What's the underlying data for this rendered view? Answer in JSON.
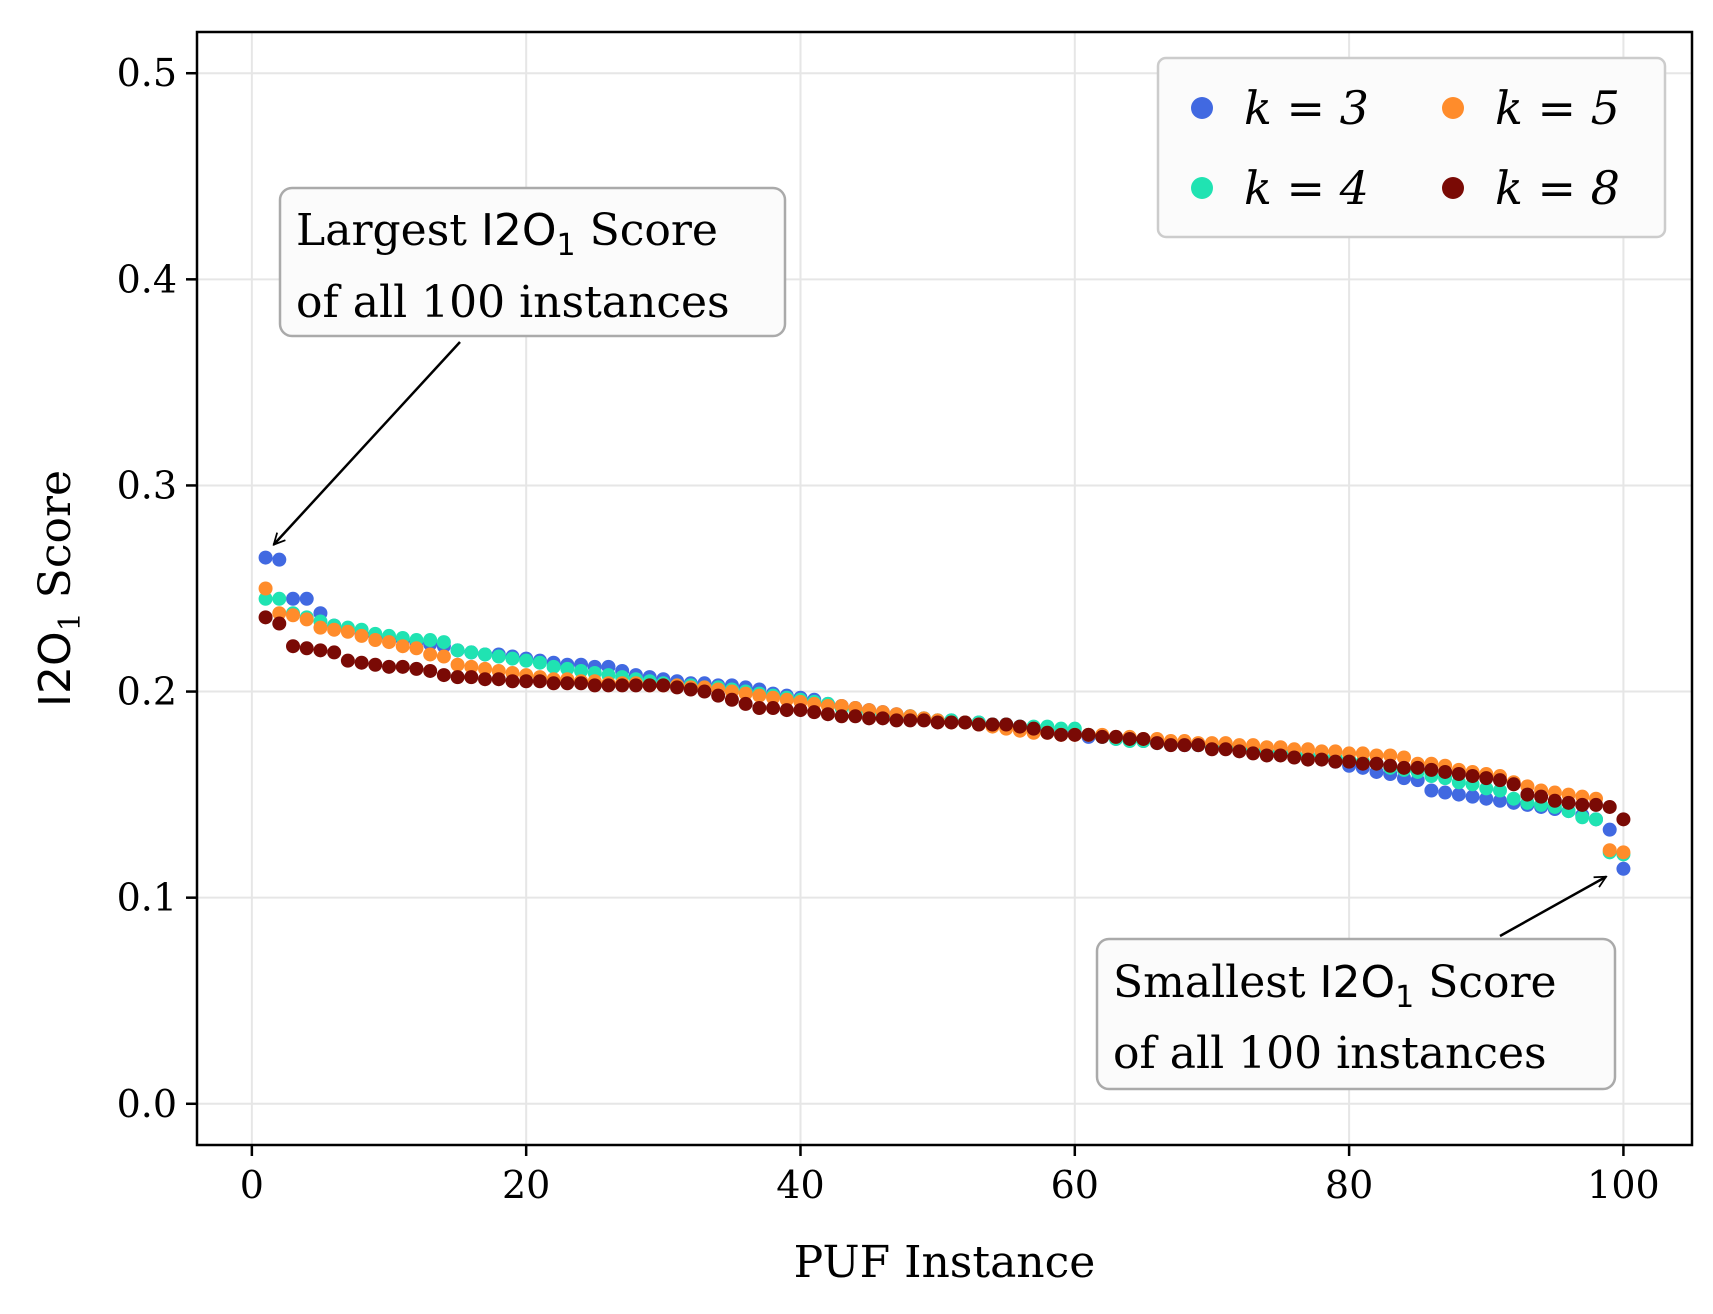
{
  "chart_data": {
    "type": "scatter",
    "xlabel": "PUF Instance",
    "ylabel": "I2O",
    "ylabel_sub": "1",
    "ylabel_suffix": " Score",
    "xlim": [
      -4,
      105
    ],
    "ylim": [
      -0.02,
      0.52
    ],
    "xticks": [
      0,
      20,
      40,
      60,
      80,
      100
    ],
    "yticks": [
      0.0,
      0.1,
      0.2,
      0.3,
      0.4,
      0.5
    ],
    "grid": true,
    "legend": {
      "placement": "top-right",
      "columns": 2
    },
    "series": [
      {
        "name": "k = 3",
        "color": "#4169e1",
        "x_start": 1,
        "values": [
          0.265,
          0.264,
          0.245,
          0.245,
          0.238,
          0.232,
          0.23,
          0.228,
          0.227,
          0.226,
          0.225,
          0.224,
          0.223,
          0.222,
          0.22,
          0.219,
          0.218,
          0.218,
          0.217,
          0.216,
          0.215,
          0.214,
          0.213,
          0.213,
          0.212,
          0.212,
          0.21,
          0.208,
          0.207,
          0.206,
          0.205,
          0.204,
          0.204,
          0.203,
          0.203,
          0.202,
          0.201,
          0.199,
          0.198,
          0.197,
          0.196,
          0.194,
          0.193,
          0.192,
          0.191,
          0.19,
          0.189,
          0.188,
          0.187,
          0.186,
          0.186,
          0.185,
          0.185,
          0.184,
          0.184,
          0.183,
          0.182,
          0.181,
          0.18,
          0.18,
          0.178,
          0.178,
          0.177,
          0.177,
          0.176,
          0.175,
          0.175,
          0.174,
          0.174,
          0.173,
          0.173,
          0.172,
          0.172,
          0.171,
          0.171,
          0.17,
          0.169,
          0.168,
          0.166,
          0.164,
          0.163,
          0.161,
          0.16,
          0.158,
          0.157,
          0.152,
          0.151,
          0.15,
          0.149,
          0.148,
          0.147,
          0.146,
          0.145,
          0.144,
          0.143,
          0.142,
          0.14,
          0.138,
          0.133,
          0.114
        ]
      },
      {
        "name": "k = 4",
        "color": "#20e3b2",
        "x_start": 1,
        "values": [
          0.245,
          0.245,
          0.238,
          0.236,
          0.234,
          0.232,
          0.231,
          0.23,
          0.228,
          0.227,
          0.226,
          0.225,
          0.225,
          0.224,
          0.22,
          0.219,
          0.218,
          0.217,
          0.216,
          0.215,
          0.214,
          0.212,
          0.211,
          0.21,
          0.209,
          0.208,
          0.207,
          0.206,
          0.205,
          0.204,
          0.203,
          0.203,
          0.202,
          0.202,
          0.201,
          0.2,
          0.199,
          0.198,
          0.197,
          0.196,
          0.195,
          0.194,
          0.192,
          0.191,
          0.19,
          0.189,
          0.188,
          0.188,
          0.187,
          0.186,
          0.186,
          0.185,
          0.185,
          0.184,
          0.184,
          0.183,
          0.183,
          0.183,
          0.182,
          0.182,
          0.179,
          0.178,
          0.177,
          0.176,
          0.176,
          0.175,
          0.175,
          0.175,
          0.174,
          0.174,
          0.173,
          0.173,
          0.172,
          0.171,
          0.171,
          0.17,
          0.169,
          0.169,
          0.168,
          0.167,
          0.166,
          0.165,
          0.163,
          0.162,
          0.161,
          0.159,
          0.158,
          0.156,
          0.155,
          0.153,
          0.152,
          0.148,
          0.146,
          0.145,
          0.144,
          0.142,
          0.139,
          0.138,
          0.122,
          0.121
        ]
      },
      {
        "name": "k = 5",
        "color": "#ff8c2b",
        "x_start": 1,
        "values": [
          0.25,
          0.238,
          0.237,
          0.235,
          0.231,
          0.23,
          0.229,
          0.227,
          0.225,
          0.224,
          0.222,
          0.221,
          0.218,
          0.217,
          0.213,
          0.212,
          0.211,
          0.21,
          0.209,
          0.208,
          0.207,
          0.206,
          0.206,
          0.205,
          0.205,
          0.204,
          0.204,
          0.204,
          0.203,
          0.203,
          0.203,
          0.202,
          0.202,
          0.201,
          0.2,
          0.199,
          0.198,
          0.197,
          0.196,
          0.195,
          0.194,
          0.193,
          0.193,
          0.192,
          0.191,
          0.19,
          0.189,
          0.188,
          0.187,
          0.186,
          0.185,
          0.185,
          0.184,
          0.183,
          0.182,
          0.181,
          0.18,
          0.18,
          0.179,
          0.179,
          0.179,
          0.179,
          0.178,
          0.178,
          0.177,
          0.177,
          0.176,
          0.176,
          0.175,
          0.175,
          0.175,
          0.174,
          0.174,
          0.173,
          0.173,
          0.172,
          0.172,
          0.171,
          0.171,
          0.17,
          0.17,
          0.169,
          0.169,
          0.168,
          0.165,
          0.165,
          0.164,
          0.162,
          0.161,
          0.16,
          0.159,
          0.156,
          0.154,
          0.152,
          0.151,
          0.15,
          0.149,
          0.148,
          0.123,
          0.122
        ]
      },
      {
        "name": "k = 8",
        "color": "#7a0a05",
        "x_start": 1,
        "values": [
          0.236,
          0.233,
          0.222,
          0.221,
          0.22,
          0.219,
          0.215,
          0.214,
          0.213,
          0.212,
          0.212,
          0.211,
          0.21,
          0.208,
          0.207,
          0.207,
          0.206,
          0.206,
          0.205,
          0.205,
          0.205,
          0.204,
          0.204,
          0.204,
          0.203,
          0.203,
          0.203,
          0.203,
          0.203,
          0.203,
          0.202,
          0.201,
          0.2,
          0.198,
          0.196,
          0.194,
          0.192,
          0.192,
          0.191,
          0.191,
          0.19,
          0.189,
          0.188,
          0.188,
          0.187,
          0.187,
          0.186,
          0.186,
          0.186,
          0.185,
          0.185,
          0.185,
          0.184,
          0.184,
          0.184,
          0.183,
          0.182,
          0.18,
          0.179,
          0.179,
          0.179,
          0.178,
          0.178,
          0.177,
          0.177,
          0.175,
          0.174,
          0.174,
          0.174,
          0.172,
          0.172,
          0.171,
          0.17,
          0.169,
          0.169,
          0.168,
          0.167,
          0.167,
          0.166,
          0.166,
          0.165,
          0.165,
          0.164,
          0.163,
          0.163,
          0.162,
          0.161,
          0.16,
          0.159,
          0.158,
          0.157,
          0.155,
          0.15,
          0.149,
          0.147,
          0.146,
          0.145,
          0.145,
          0.144,
          0.138
        ]
      }
    ],
    "annotations": [
      {
        "line1_a": "Largest ",
        "line1_b": "I2O",
        "line1_sub": "1",
        "line1_c": " Score",
        "line2": "of all 100 instances",
        "target_x": 1,
        "target_y": 0.267
      },
      {
        "line1_a": "Smallest ",
        "line1_b": "I2O",
        "line1_sub": "1",
        "line1_c": " Score",
        "line2": "of all 100 instances",
        "target_x": 99.5,
        "target_y": 0.113
      }
    ]
  }
}
